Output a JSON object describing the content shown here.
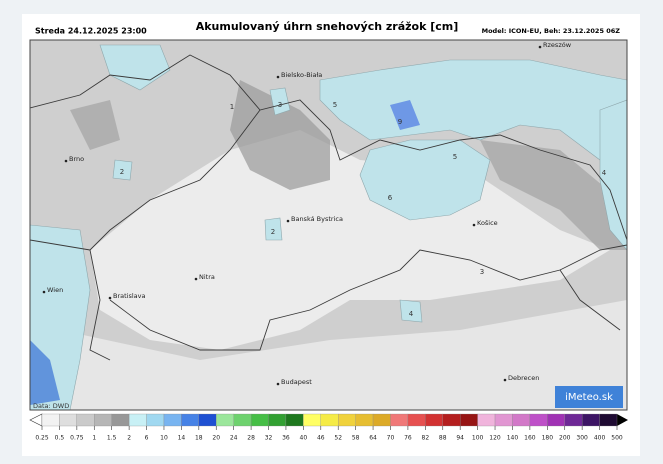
{
  "header": {
    "datetime": "Streda 24.12.2025 23:00",
    "title": "Akumulovaný úhrn snehových zrážok [cm]",
    "model": "Model: ICON-EU, Beh: 23.12.2025 06Z"
  },
  "map": {
    "cities": [
      {
        "name": "Rzeszów"
      },
      {
        "name": "Bielsko-Biała"
      },
      {
        "name": "Brno"
      },
      {
        "name": "Banská Bystrica"
      },
      {
        "name": "Košice"
      },
      {
        "name": "Nitra"
      },
      {
        "name": "Wien"
      },
      {
        "name": "Bratislava"
      },
      {
        "name": "Budapest"
      },
      {
        "name": "Debrecen"
      }
    ],
    "contour_labels": [
      1,
      3,
      5,
      9,
      5,
      2,
      6,
      2,
      3,
      4,
      4
    ],
    "source": "Data: DWD",
    "logo": "iMeteo.sk"
  },
  "legend": {
    "ticks": [
      0.25,
      0.5,
      0.75,
      1,
      1.5,
      2,
      6,
      10,
      14,
      18,
      20,
      24,
      28,
      32,
      36,
      40,
      46,
      52,
      58,
      64,
      70,
      76,
      82,
      88,
      94,
      100,
      120,
      140,
      160,
      180,
      200,
      300,
      400,
      500
    ],
    "colors": [
      "#f2f2f2",
      "#dedede",
      "#cacaca",
      "#b6b6b6",
      "#989898",
      "#c8f0f5",
      "#a0d8f0",
      "#78b4f0",
      "#4682e6",
      "#1e50d2",
      "#9be69b",
      "#6ed26e",
      "#46be46",
      "#32a032",
      "#1e781e",
      "#ffff64",
      "#f5eb46",
      "#f0d23c",
      "#e6be32",
      "#dcaa28",
      "#f07878",
      "#e65050",
      "#d23232",
      "#b41e1e",
      "#961414",
      "#f0b4dc",
      "#e196d2",
      "#d278c8",
      "#be50c8",
      "#a032b4",
      "#6e2896",
      "#3c1464",
      "#1e0a32"
    ]
  }
}
